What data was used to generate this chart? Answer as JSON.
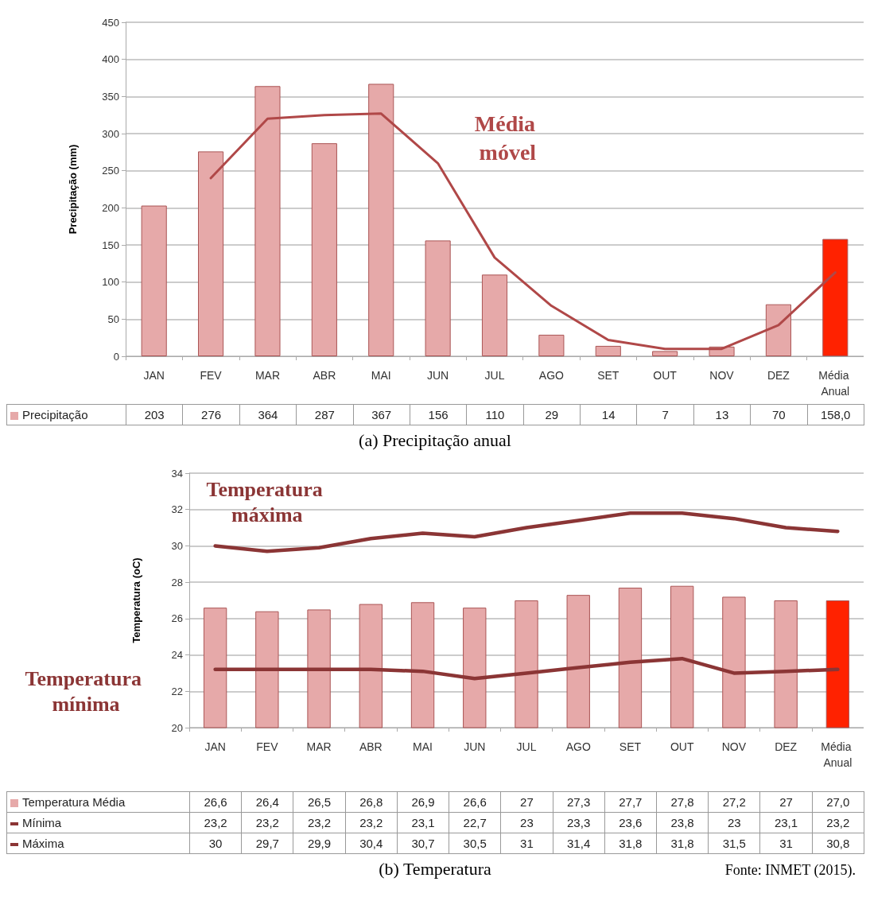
{
  "chart_data": [
    {
      "type": "bar",
      "title": "(a) Precipitação anual",
      "ylabel": "Precipitação (mm)",
      "categories": [
        "JAN",
        "FEV",
        "MAR",
        "ABR",
        "MAI",
        "JUN",
        "JUL",
        "AGO",
        "SET",
        "OUT",
        "NOV",
        "DEZ",
        "Média Anual"
      ],
      "series": [
        {
          "name": "Precipitação",
          "color": "#e6a9a9",
          "colors": [
            "#e6a9a9",
            "#e6a9a9",
            "#e6a9a9",
            "#e6a9a9",
            "#e6a9a9",
            "#e6a9a9",
            "#e6a9a9",
            "#e6a9a9",
            "#e6a9a9",
            "#e6a9a9",
            "#e6a9a9",
            "#e6a9a9",
            "#ff2200"
          ],
          "values": [
            203,
            276,
            364,
            287,
            367,
            156,
            110,
            29,
            14,
            7,
            13,
            70,
            158.0
          ],
          "value_labels": [
            "203",
            "276",
            "364",
            "287",
            "367",
            "156",
            "110",
            "29",
            "14",
            "7",
            "13",
            "70",
            "158,0"
          ]
        },
        {
          "name": "Média móvel",
          "type": "line",
          "color": "#b04848",
          "values": [
            null,
            240,
            320,
            325,
            327,
            260,
            133,
            68,
            22,
            10,
            10,
            42,
            113
          ]
        }
      ],
      "ylim": [
        0,
        450
      ],
      "yticks": [
        0,
        50,
        100,
        150,
        200,
        250,
        300,
        350,
        400,
        450
      ],
      "grid": "y",
      "legend": "bottom",
      "marker": "none",
      "line_style": "solid"
    },
    {
      "type": "bar",
      "title": "(b) Temperatura",
      "ylabel": "Temperatura (oC)",
      "categories": [
        "JAN",
        "FEV",
        "MAR",
        "ABR",
        "MAI",
        "JUN",
        "JUL",
        "AGO",
        "SET",
        "OUT",
        "NOV",
        "DEZ",
        "Média Anual"
      ],
      "series": [
        {
          "name": "Temperatura Média",
          "color": "#e6a9a9",
          "colors": [
            "#e6a9a9",
            "#e6a9a9",
            "#e6a9a9",
            "#e6a9a9",
            "#e6a9a9",
            "#e6a9a9",
            "#e6a9a9",
            "#e6a9a9",
            "#e6a9a9",
            "#e6a9a9",
            "#e6a9a9",
            "#e6a9a9",
            "#ff2200"
          ],
          "values": [
            26.6,
            26.4,
            26.5,
            26.8,
            26.9,
            26.6,
            27,
            27.3,
            27.7,
            27.8,
            27.2,
            27,
            27.0
          ],
          "value_labels": [
            "26,6",
            "26,4",
            "26,5",
            "26,8",
            "26,9",
            "26,6",
            "27",
            "27,3",
            "27,7",
            "27,8",
            "27,2",
            "27",
            "27,0"
          ]
        },
        {
          "name": "Mínima",
          "type": "line",
          "color": "#8b3535",
          "values": [
            23.2,
            23.2,
            23.2,
            23.2,
            23.1,
            22.7,
            23,
            23.3,
            23.6,
            23.8,
            23,
            23.1,
            23.2
          ],
          "value_labels": [
            "23,2",
            "23,2",
            "23,2",
            "23,2",
            "23,1",
            "22,7",
            "23",
            "23,3",
            "23,6",
            "23,8",
            "23",
            "23,1",
            "23,2"
          ]
        },
        {
          "name": "Máxima",
          "type": "line",
          "color": "#8b3535",
          "values": [
            30,
            29.7,
            29.9,
            30.4,
            30.7,
            30.5,
            31,
            31.4,
            31.8,
            31.8,
            31.5,
            31,
            30.8
          ],
          "value_labels": [
            "30",
            "29,7",
            "29,9",
            "30,4",
            "30,7",
            "30,5",
            "31",
            "31,4",
            "31,8",
            "31,8",
            "31,5",
            "31",
            "30,8"
          ]
        }
      ],
      "annotations": [
        "Temperatura máxima",
        "Temperatura mínima",
        "Fonte: INMET (2015)."
      ],
      "ylim": [
        20,
        34
      ],
      "yticks": [
        20,
        22,
        24,
        26,
        28,
        30,
        32,
        34
      ],
      "grid": "y",
      "legend": "bottom",
      "marker": "none",
      "line_style": "solid"
    }
  ]
}
